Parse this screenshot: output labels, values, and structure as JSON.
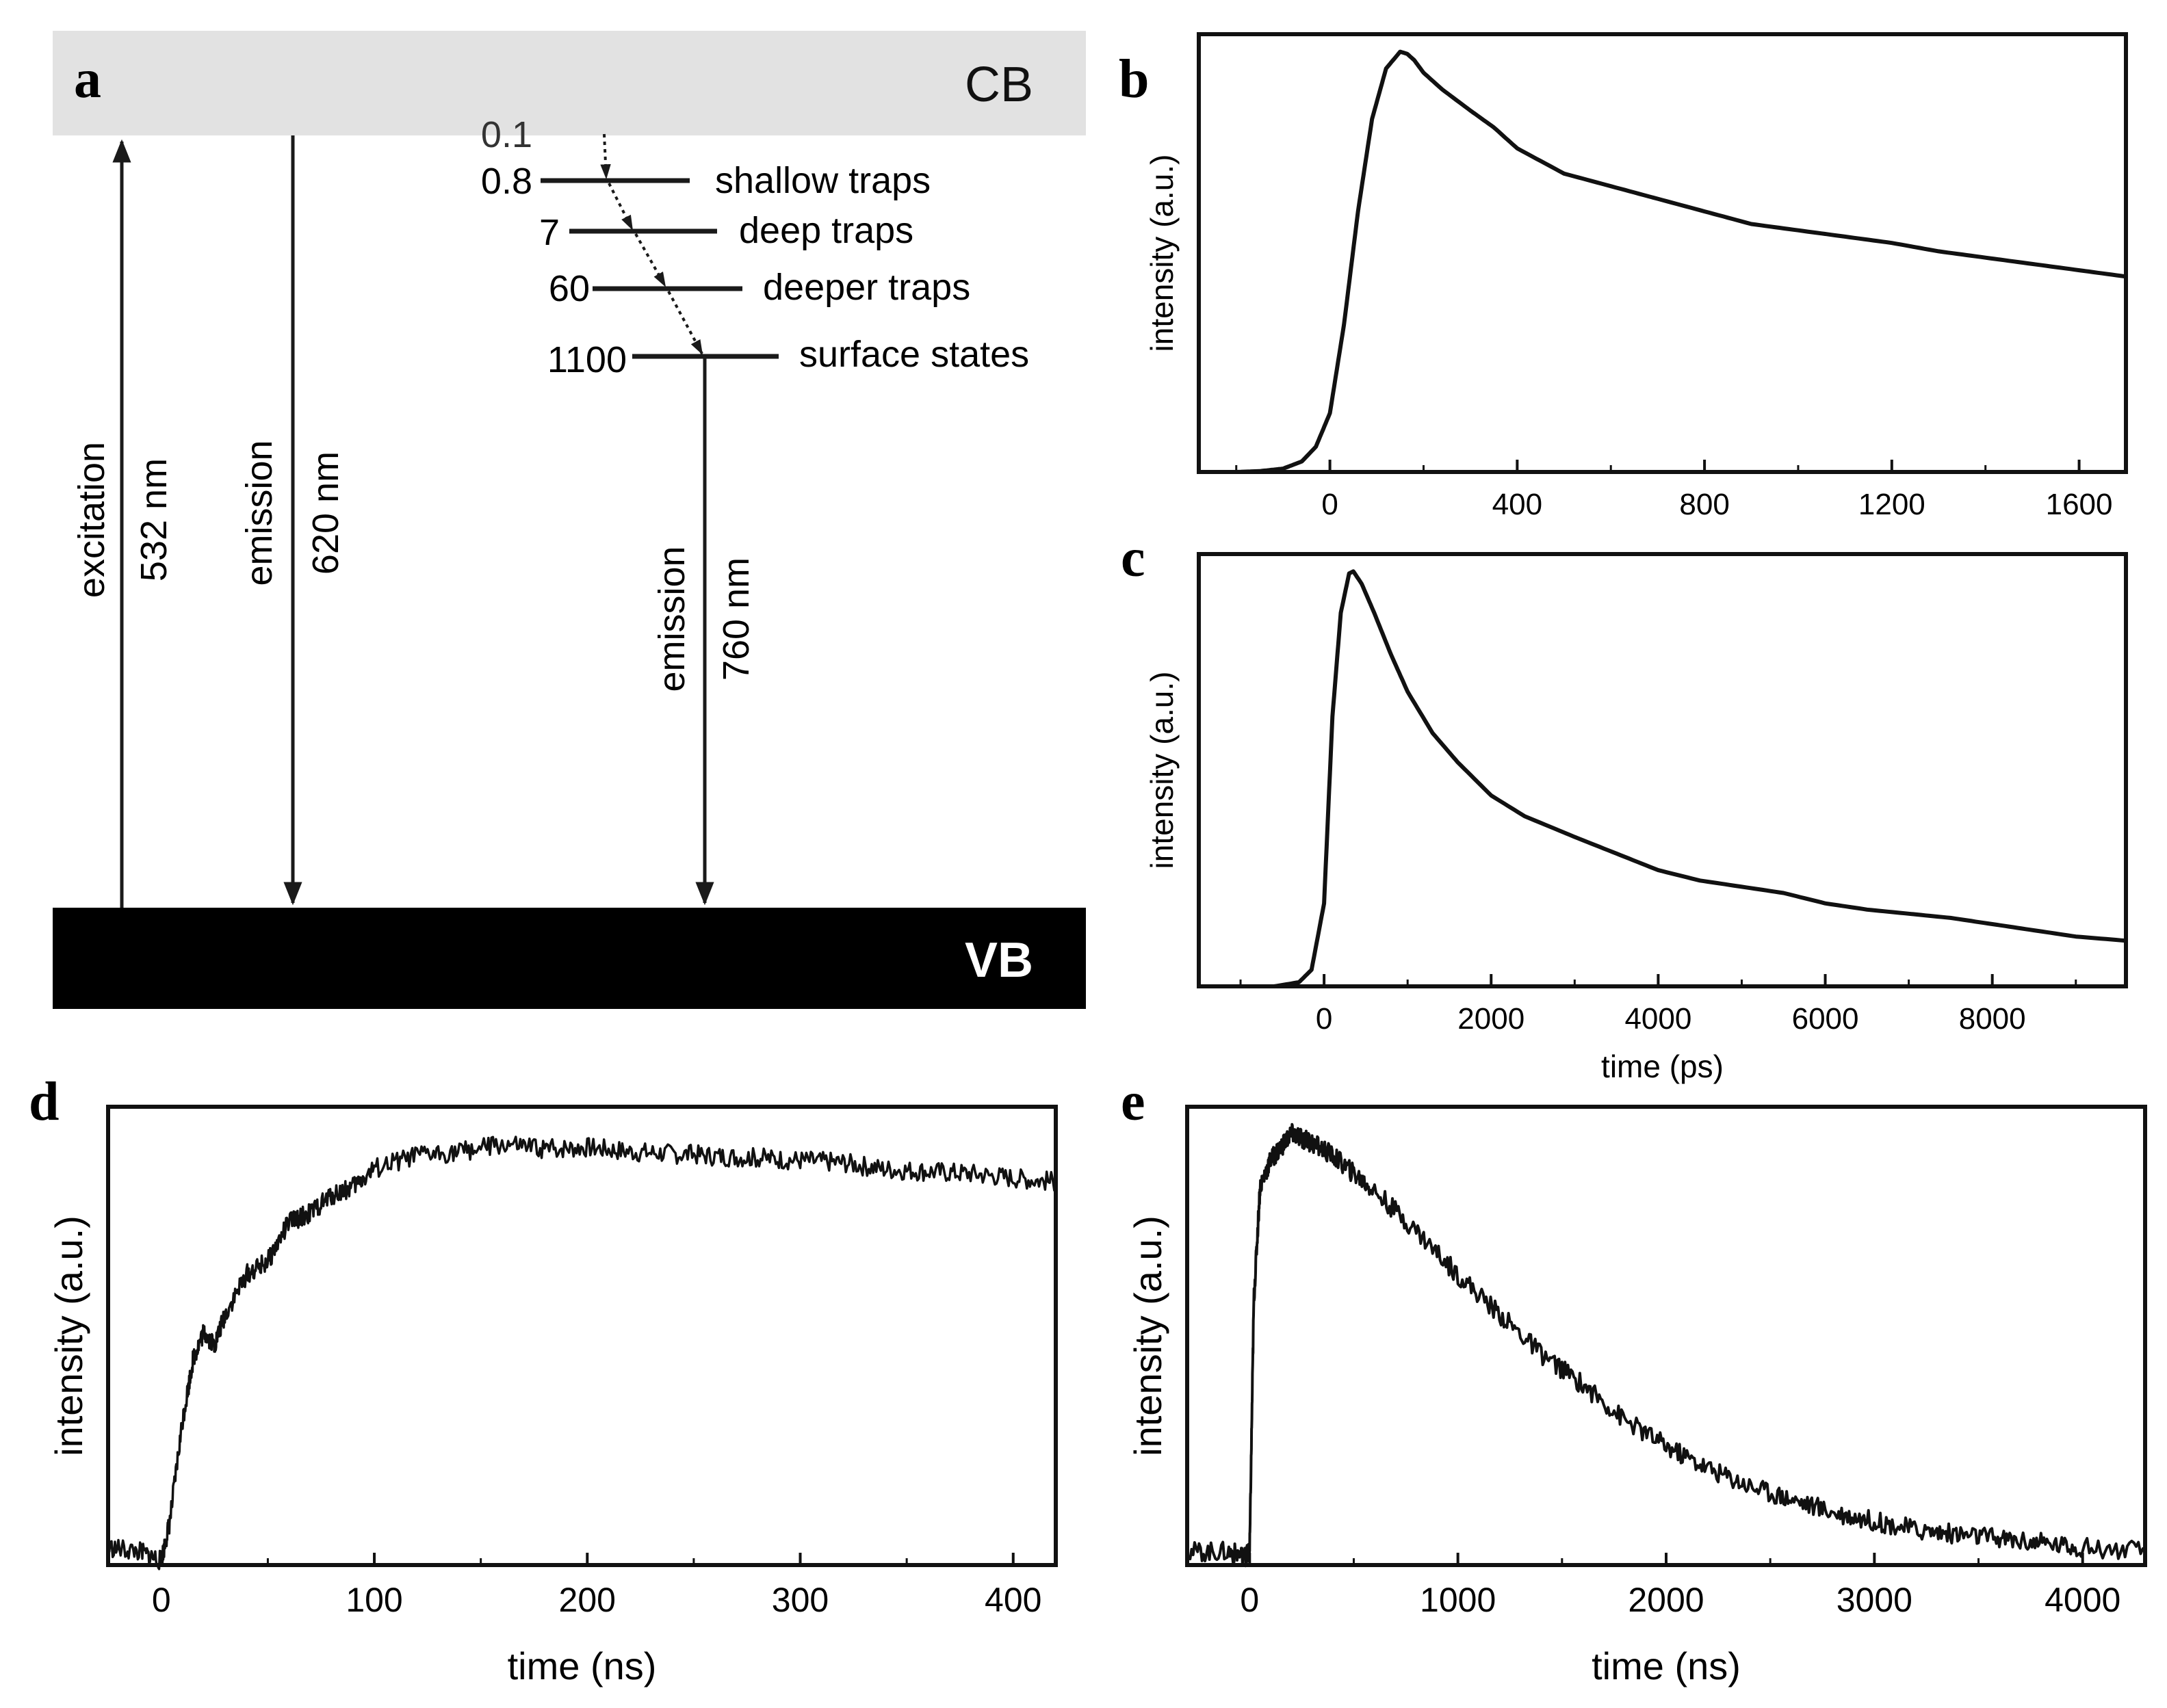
{
  "panel_labels": {
    "a": "a",
    "b": "b",
    "c": "c",
    "d": "d",
    "e": "e"
  },
  "diagram": {
    "cb_label": "CB",
    "vb_label": "VB",
    "arrows": [
      {
        "name": "excitation",
        "text1": "excitation",
        "text2": "532 nm"
      },
      {
        "name": "emission-620",
        "text1": "emission",
        "text2": "620 nm"
      },
      {
        "name": "emission-760",
        "text1": "emission",
        "text2": "760 nm"
      }
    ],
    "levels": [
      {
        "value": "0.1",
        "label": ""
      },
      {
        "value": "0.8",
        "label": "shallow traps"
      },
      {
        "value": "7",
        "label": "deep traps"
      },
      {
        "value": "60",
        "label": "deeper traps"
      },
      {
        "value": "1100",
        "label": "surface states"
      }
    ],
    "colors": {
      "cb": "#e2e2e2",
      "vb": "#000000",
      "line": "#1a1a1a"
    }
  },
  "chart_data": [
    {
      "panel": "b",
      "type": "line",
      "ylabel": "intensity (a.u.)",
      "xlabel": "",
      "xlim": [
        -280,
        1700
      ],
      "ylim": [
        0,
        1.0
      ],
      "xticks": [
        0,
        400,
        800,
        1200,
        1600
      ],
      "x": [
        -280,
        -200,
        -150,
        -100,
        -60,
        -30,
        0,
        30,
        60,
        90,
        120,
        150,
        165,
        180,
        200,
        240,
        300,
        350,
        400,
        500,
        600,
        700,
        800,
        900,
        1000,
        1100,
        1200,
        1300,
        1400,
        1500,
        1600,
        1700
      ],
      "y": [
        0.0,
        0.0,
        0.002,
        0.008,
        0.025,
        0.06,
        0.14,
        0.35,
        0.62,
        0.84,
        0.96,
        1.0,
        0.995,
        0.98,
        0.95,
        0.91,
        0.86,
        0.82,
        0.77,
        0.71,
        0.68,
        0.65,
        0.62,
        0.59,
        0.575,
        0.56,
        0.545,
        0.525,
        0.51,
        0.495,
        0.48,
        0.465
      ]
    },
    {
      "panel": "c",
      "type": "line",
      "ylabel": "intensity (a.u.)",
      "xlabel": "time (ps)",
      "xlim": [
        -1500,
        9600
      ],
      "ylim": [
        0,
        1.0
      ],
      "xticks": [
        0,
        2000,
        4000,
        6000,
        8000
      ],
      "x": [
        -1500,
        -1000,
        -600,
        -300,
        -150,
        0,
        100,
        200,
        300,
        350,
        450,
        600,
        800,
        1000,
        1300,
        1600,
        2000,
        2400,
        3000,
        3500,
        4000,
        4500,
        5000,
        5500,
        6000,
        6500,
        7000,
        7500,
        8000,
        8500,
        9000,
        9600
      ],
      "y": [
        0.0,
        0.0,
        0.0,
        0.01,
        0.04,
        0.2,
        0.65,
        0.9,
        0.995,
        1.0,
        0.97,
        0.9,
        0.8,
        0.71,
        0.61,
        0.54,
        0.46,
        0.41,
        0.36,
        0.32,
        0.28,
        0.255,
        0.24,
        0.225,
        0.2,
        0.185,
        0.175,
        0.165,
        0.15,
        0.135,
        0.12,
        0.11
      ]
    },
    {
      "panel": "d",
      "type": "line",
      "ylabel": "intensity (a.u.)",
      "xlabel": "time (ns)",
      "xlim": [
        -25,
        420
      ],
      "ylim": [
        0,
        1.0
      ],
      "xticks": [
        0,
        100,
        200,
        300,
        400
      ],
      "x": [
        -25,
        -10,
        0,
        4,
        10,
        15,
        20,
        25,
        30,
        40,
        50,
        60,
        70,
        80,
        90,
        100,
        120,
        140,
        160,
        180,
        200,
        220,
        240,
        260,
        280,
        300,
        320,
        340,
        360,
        380,
        400,
        420
      ],
      "y": [
        0.04,
        0.03,
        0.01,
        0.1,
        0.33,
        0.47,
        0.53,
        0.5,
        0.57,
        0.66,
        0.69,
        0.78,
        0.8,
        0.84,
        0.86,
        0.9,
        0.93,
        0.94,
        0.955,
        0.945,
        0.95,
        0.94,
        0.935,
        0.93,
        0.925,
        0.92,
        0.915,
        0.9,
        0.895,
        0.89,
        0.88,
        0.87
      ]
    },
    {
      "panel": "e",
      "type": "line",
      "ylabel": "intensity (a.u.)",
      "xlabel": "time (ns)",
      "xlim": [
        -300,
        4300
      ],
      "ylim": [
        0,
        1.0
      ],
      "xticks": [
        0,
        1000,
        2000,
        3000,
        4000
      ],
      "x": [
        -300,
        -100,
        -20,
        0,
        20,
        50,
        100,
        150,
        200,
        250,
        300,
        400,
        500,
        600,
        800,
        1000,
        1200,
        1400,
        1600,
        1800,
        2000,
        2200,
        2400,
        2600,
        2800,
        3000,
        3200,
        3400,
        3600,
        3800,
        4000,
        4300
      ],
      "y": [
        0.03,
        0.03,
        0.02,
        0.03,
        0.6,
        0.86,
        0.92,
        0.95,
        0.98,
        0.97,
        0.96,
        0.93,
        0.89,
        0.85,
        0.76,
        0.66,
        0.57,
        0.48,
        0.41,
        0.33,
        0.27,
        0.22,
        0.18,
        0.15,
        0.12,
        0.1,
        0.08,
        0.07,
        0.06,
        0.05,
        0.04,
        0.03
      ]
    }
  ]
}
